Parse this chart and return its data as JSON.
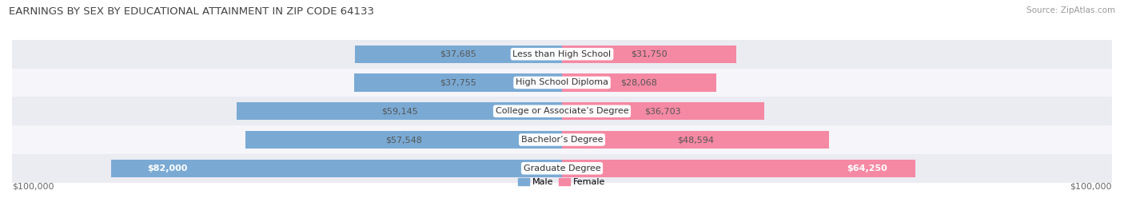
{
  "title": "EARNINGS BY SEX BY EDUCATIONAL ATTAINMENT IN ZIP CODE 64133",
  "source": "Source: ZipAtlas.com",
  "categories": [
    "Less than High School",
    "High School Diploma",
    "College or Associate’s Degree",
    "Bachelor’s Degree",
    "Graduate Degree"
  ],
  "male_values": [
    37685,
    37755,
    59145,
    57548,
    82000
  ],
  "female_values": [
    31750,
    28068,
    36703,
    48594,
    64250
  ],
  "male_labels": [
    "$37,685",
    "$37,755",
    "$59,145",
    "$57,548",
    "$82,000"
  ],
  "female_labels": [
    "$31,750",
    "$28,068",
    "$36,703",
    "$48,594",
    "$64,250"
  ],
  "male_color": "#7aaad4",
  "female_color": "#f589a3",
  "bg_row_colors": [
    "#ebebf2",
    "#f5f5fa",
    "#ebebf2",
    "#f5f5fa",
    "#ebebf2"
  ],
  "max_value": 100000,
  "xlabel_left": "$100,000",
  "xlabel_right": "$100,000",
  "bar_height": 0.62,
  "background_color": "#ffffff",
  "title_fontsize": 9.5,
  "label_fontsize": 8.0,
  "tick_fontsize": 8.0,
  "source_fontsize": 7.5
}
